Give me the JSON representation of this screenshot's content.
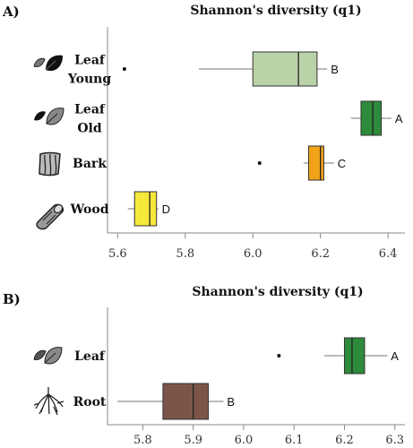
{
  "chart_data": [
    {
      "type": "box",
      "panel_label": "A)",
      "title": "Shannon's diversity (q1)",
      "xlim": [
        5.57,
        6.45
      ],
      "xticks": [
        "5.6",
        "5.8",
        "6.0",
        "6.2",
        "6.4"
      ],
      "xtick_values": [
        5.6,
        5.8,
        6.0,
        6.2,
        6.4
      ],
      "series": [
        {
          "name": "Leaf Young",
          "label_lines": [
            "Leaf",
            "Young"
          ],
          "icon": "young-leaf-icon",
          "color": "#b9d2a8",
          "whisker_low": 5.84,
          "q1": 6.0,
          "median": 6.135,
          "q3": 6.19,
          "whisker_high": 6.22,
          "outliers": [
            5.62
          ],
          "letter": "B"
        },
        {
          "name": "Leaf Old",
          "label_lines": [
            "Leaf",
            "Old"
          ],
          "icon": "old-leaf-icon",
          "color": "#2e8b3c",
          "whisker_low": 6.29,
          "q1": 6.32,
          "median": 6.355,
          "q3": 6.38,
          "whisker_high": 6.41,
          "outliers": [],
          "letter": "A"
        },
        {
          "name": "Bark",
          "label_lines": [
            "Bark"
          ],
          "icon": "bark-icon",
          "color": "#f0a318",
          "whisker_low": 6.15,
          "q1": 6.165,
          "median": 6.2,
          "q3": 6.21,
          "whisker_high": 6.24,
          "outliers": [
            6.02
          ],
          "letter": "C"
        },
        {
          "name": "Wood",
          "label_lines": [
            "Wood"
          ],
          "icon": "wood-icon",
          "color": "#f5e83a",
          "whisker_low": 5.63,
          "q1": 5.65,
          "median": 5.695,
          "q3": 5.715,
          "whisker_high": 5.72,
          "outliers": [],
          "letter": "D"
        }
      ]
    },
    {
      "type": "box",
      "panel_label": "B)",
      "title": "Shannon's diversity (q1)",
      "xlim": [
        5.73,
        6.32
      ],
      "xticks": [
        "5.8",
        "5.9",
        "6.0",
        "6.1",
        "6.2",
        "6.3"
      ],
      "xtick_values": [
        5.8,
        5.9,
        6.0,
        6.1,
        6.2,
        6.3
      ],
      "series": [
        {
          "name": "Leaf",
          "label_lines": [
            "Leaf"
          ],
          "icon": "leaves-icon",
          "color": "#2e8b3c",
          "whisker_low": 6.16,
          "q1": 6.2,
          "median": 6.215,
          "q3": 6.24,
          "whisker_high": 6.285,
          "outliers": [
            6.07
          ],
          "letter": "A"
        },
        {
          "name": "Root",
          "label_lines": [
            "Root"
          ],
          "icon": "root-icon",
          "color": "#7b5648",
          "whisker_low": 5.75,
          "q1": 5.84,
          "median": 5.9,
          "q3": 5.93,
          "whisker_high": 5.96,
          "outliers": [],
          "letter": "B"
        }
      ]
    }
  ]
}
